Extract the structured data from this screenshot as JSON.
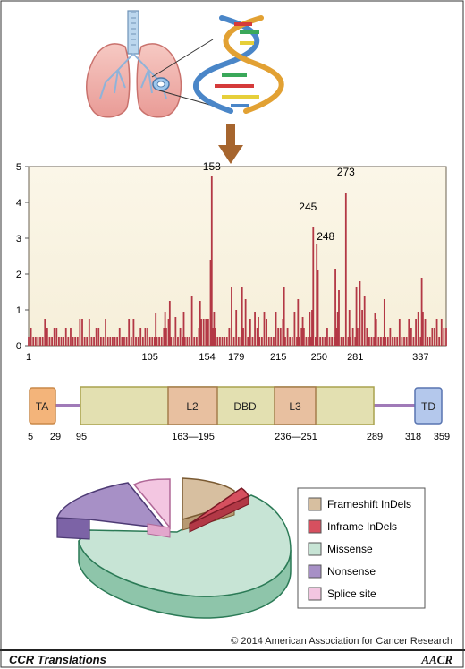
{
  "chart_data": {
    "type": "bar",
    "title": "",
    "xlabel": "",
    "ylabel": "",
    "ylim": [
      0,
      5
    ],
    "xlim": [
      1,
      359
    ],
    "yticks": [
      0,
      1,
      2,
      3,
      4,
      5
    ],
    "xticks": [
      1,
      105,
      154,
      179,
      215,
      250,
      281,
      337
    ],
    "annotations": [
      {
        "label": "158",
        "x": 158,
        "y": 4.75
      },
      {
        "label": "245",
        "x": 245,
        "y": 3.32
      },
      {
        "label": "248",
        "x": 248,
        "y": 2.85
      },
      {
        "label": "273",
        "x": 273,
        "y": 4.25
      }
    ],
    "spikes": [
      {
        "x": 158,
        "y": 4.75
      },
      {
        "x": 157,
        "y": 2.4
      },
      {
        "x": 160,
        "y": 0.95
      },
      {
        "x": 245,
        "y": 3.32
      },
      {
        "x": 248,
        "y": 2.85
      },
      {
        "x": 249,
        "y": 2.1
      },
      {
        "x": 273,
        "y": 4.25
      },
      {
        "x": 242,
        "y": 0.95
      },
      {
        "x": 244,
        "y": 1.0
      },
      {
        "x": 264,
        "y": 2.15
      },
      {
        "x": 267,
        "y": 1.55
      },
      {
        "x": 266,
        "y": 0.95
      },
      {
        "x": 276,
        "y": 1.0
      },
      {
        "x": 282,
        "y": 1.65
      },
      {
        "x": 285,
        "y": 1.8
      },
      {
        "x": 287,
        "y": 1.0
      },
      {
        "x": 289,
        "y": 1.4
      },
      {
        "x": 298,
        "y": 0.9
      },
      {
        "x": 306,
        "y": 1.3
      },
      {
        "x": 335,
        "y": 0.95
      },
      {
        "x": 338,
        "y": 1.9
      },
      {
        "x": 339,
        "y": 0.95
      },
      {
        "x": 141,
        "y": 1.4
      },
      {
        "x": 148,
        "y": 1.25
      },
      {
        "x": 134,
        "y": 0.95
      },
      {
        "x": 127,
        "y": 0.8
      },
      {
        "x": 122,
        "y": 1.25
      },
      {
        "x": 118,
        "y": 0.95
      },
      {
        "x": 110,
        "y": 0.9
      },
      {
        "x": 175,
        "y": 1.65
      },
      {
        "x": 179,
        "y": 1.0
      },
      {
        "x": 184,
        "y": 1.65
      },
      {
        "x": 187,
        "y": 1.3
      },
      {
        "x": 195,
        "y": 0.95
      },
      {
        "x": 198,
        "y": 0.8
      },
      {
        "x": 203,
        "y": 0.95
      },
      {
        "x": 213,
        "y": 0.95
      },
      {
        "x": 220,
        "y": 1.65
      },
      {
        "x": 229,
        "y": 0.95
      },
      {
        "x": 232,
        "y": 1.3
      },
      {
        "x": 236,
        "y": 0.8
      }
    ]
  },
  "protein_domains": {
    "domains": [
      {
        "label": "TA"
      },
      {
        "label": "L2"
      },
      {
        "label": "DBD"
      },
      {
        "label": "L3"
      },
      {
        "label": "TD"
      }
    ],
    "positions": [
      "5",
      "29",
      "95",
      "163—195",
      "236—251",
      "289",
      "318",
      "359"
    ]
  },
  "pie": {
    "legend": [
      {
        "label": "Frameshift InDels",
        "color": "#d7bfa0"
      },
      {
        "label": "Inframe InDels",
        "color": "#d6505f"
      },
      {
        "label": "Missense",
        "color": "#c7e4d5"
      },
      {
        "label": "Nonsense",
        "color": "#a790c6"
      },
      {
        "label": "Splice site",
        "color": "#f3c6e1"
      }
    ]
  },
  "copyright": "© 2014 American Association for Cancer Research",
  "footer": {
    "left": "CCR Translations",
    "right": "AACR"
  }
}
